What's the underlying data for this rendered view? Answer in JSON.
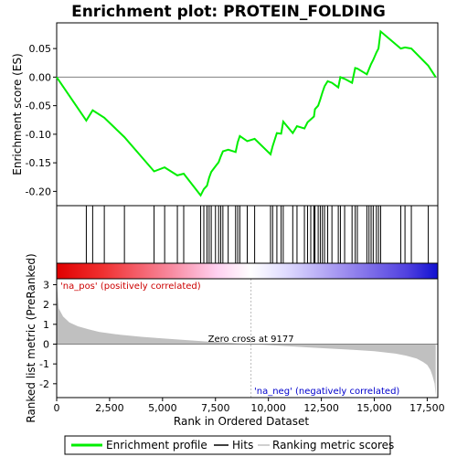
{
  "chart_data": {
    "type": "line",
    "title": "Enrichment plot: PROTEIN_FOLDING",
    "es_panel": {
      "ylabel": "Enrichment score (ES)",
      "ylim": [
        -0.225,
        0.095
      ],
      "yticks": [
        -0.2,
        -0.15,
        -0.1,
        -0.05,
        0.0,
        0.05
      ],
      "ytick_labels": [
        "-0.20",
        "-0.15",
        "-0.10",
        "-0.05",
        "0.00",
        "0.05"
      ],
      "grid": false
    },
    "rank_panel": {
      "ylabel": "Ranked list metric (PreRanked)",
      "xlabel": "Rank in Ordered Dataset",
      "ylim": [
        -2.7,
        3.3
      ],
      "yticks": [
        -2,
        -1,
        0,
        1,
        2,
        3
      ],
      "ytick_labels": [
        "-2",
        "-1",
        "0",
        "1",
        "2",
        "3"
      ],
      "xlim": [
        0,
        18000
      ],
      "xticks": [
        0,
        2500,
        5000,
        7500,
        10000,
        12500,
        15000,
        17500
      ],
      "xtick_labels": [
        "0",
        "2,500",
        "5,000",
        "7,500",
        "10,000",
        "12,500",
        "15,000",
        "17,500"
      ]
    },
    "n_genes": 17900,
    "hits": [
      1400,
      1700,
      2250,
      3200,
      4600,
      5100,
      5700,
      6000,
      6800,
      6950,
      7100,
      7200,
      7300,
      7500,
      7650,
      7750,
      7850,
      8100,
      8450,
      8550,
      8650,
      9000,
      9350,
      10100,
      10200,
      10400,
      10600,
      10700,
      11150,
      11350,
      11700,
      11850,
      12000,
      12150,
      12200,
      12350,
      12450,
      12550,
      12650,
      12800,
      13000,
      13300,
      13400,
      13600,
      13950,
      14100,
      14200,
      14650,
      14750,
      14850,
      14950,
      15100,
      15200,
      15300,
      16250,
      16450,
      16750,
      17550
    ],
    "es_curve": {
      "x": [
        0,
        1400,
        1700,
        2250,
        3200,
        4600,
        5100,
        5700,
        6000,
        6800,
        6950,
        7100,
        7200,
        7300,
        7500,
        7650,
        7750,
        7850,
        8100,
        8450,
        8550,
        8650,
        9000,
        9350,
        10100,
        10200,
        10400,
        10600,
        10700,
        11150,
        11350,
        11700,
        11850,
        12000,
        12150,
        12200,
        12350,
        12450,
        12550,
        12650,
        12800,
        13000,
        13300,
        13400,
        13600,
        13950,
        14100,
        14200,
        14650,
        14750,
        14850,
        14950,
        15100,
        15200,
        15300,
        16250,
        16450,
        16750,
        17550,
        17900
      ],
      "y": [
        0.0,
        -0.076,
        -0.058,
        -0.071,
        -0.105,
        -0.165,
        -0.158,
        -0.172,
        -0.169,
        -0.207,
        -0.196,
        -0.19,
        -0.176,
        -0.166,
        -0.156,
        -0.149,
        -0.139,
        -0.13,
        -0.127,
        -0.131,
        -0.114,
        -0.103,
        -0.112,
        -0.108,
        -0.135,
        -0.121,
        -0.098,
        -0.099,
        -0.078,
        -0.098,
        -0.086,
        -0.09,
        -0.079,
        -0.074,
        -0.069,
        -0.056,
        -0.05,
        -0.039,
        -0.027,
        -0.016,
        -0.007,
        -0.01,
        -0.018,
        0.0,
        -0.003,
        -0.01,
        0.016,
        0.015,
        0.005,
        0.014,
        0.023,
        0.03,
        0.043,
        0.05,
        0.08,
        0.05,
        0.052,
        0.05,
        0.02,
        0.0
      ]
    },
    "metric_curve": {
      "x": [
        0,
        100,
        300,
        600,
        1000,
        1500,
        2000,
        3000,
        4000,
        5000,
        6000,
        7000,
        8000,
        9177,
        10000,
        11000,
        12000,
        13000,
        14000,
        15000,
        16000,
        16500,
        17000,
        17300,
        17500,
        17650,
        17750,
        17850,
        17900
      ],
      "y": [
        3.2,
        1.8,
        1.4,
        1.1,
        0.9,
        0.75,
        0.62,
        0.47,
        0.37,
        0.29,
        0.21,
        0.14,
        0.08,
        0.0,
        -0.05,
        -0.11,
        -0.17,
        -0.23,
        -0.29,
        -0.36,
        -0.48,
        -0.58,
        -0.73,
        -0.9,
        -1.05,
        -1.3,
        -1.6,
        -2.0,
        -2.6
      ]
    },
    "zero_cross": {
      "rank": 9177,
      "label": "Zero cross at 9177"
    },
    "pos_label": "'na_pos' (positively correlated)",
    "neg_label": "'na_neg' (negatively correlated)",
    "legend": {
      "position": "bottom",
      "entries": [
        {
          "label": "Enrichment profile",
          "color": "#00ee00"
        },
        {
          "label": "Hits",
          "color": "#000000"
        },
        {
          "label": "Ranking metric scores",
          "color": "#c0c0c0"
        }
      ]
    },
    "colors": {
      "es_line": "#00ee00",
      "hit": "#000000",
      "metric_fill": "#c0c0c0",
      "pos_text": "#cc0000",
      "neg_text": "#0000cc",
      "zero_line": "#bbbbbb",
      "bar_pos": "#e00000",
      "bar_mid": "#ffffff",
      "bar_neg": "#1010d0"
    }
  }
}
